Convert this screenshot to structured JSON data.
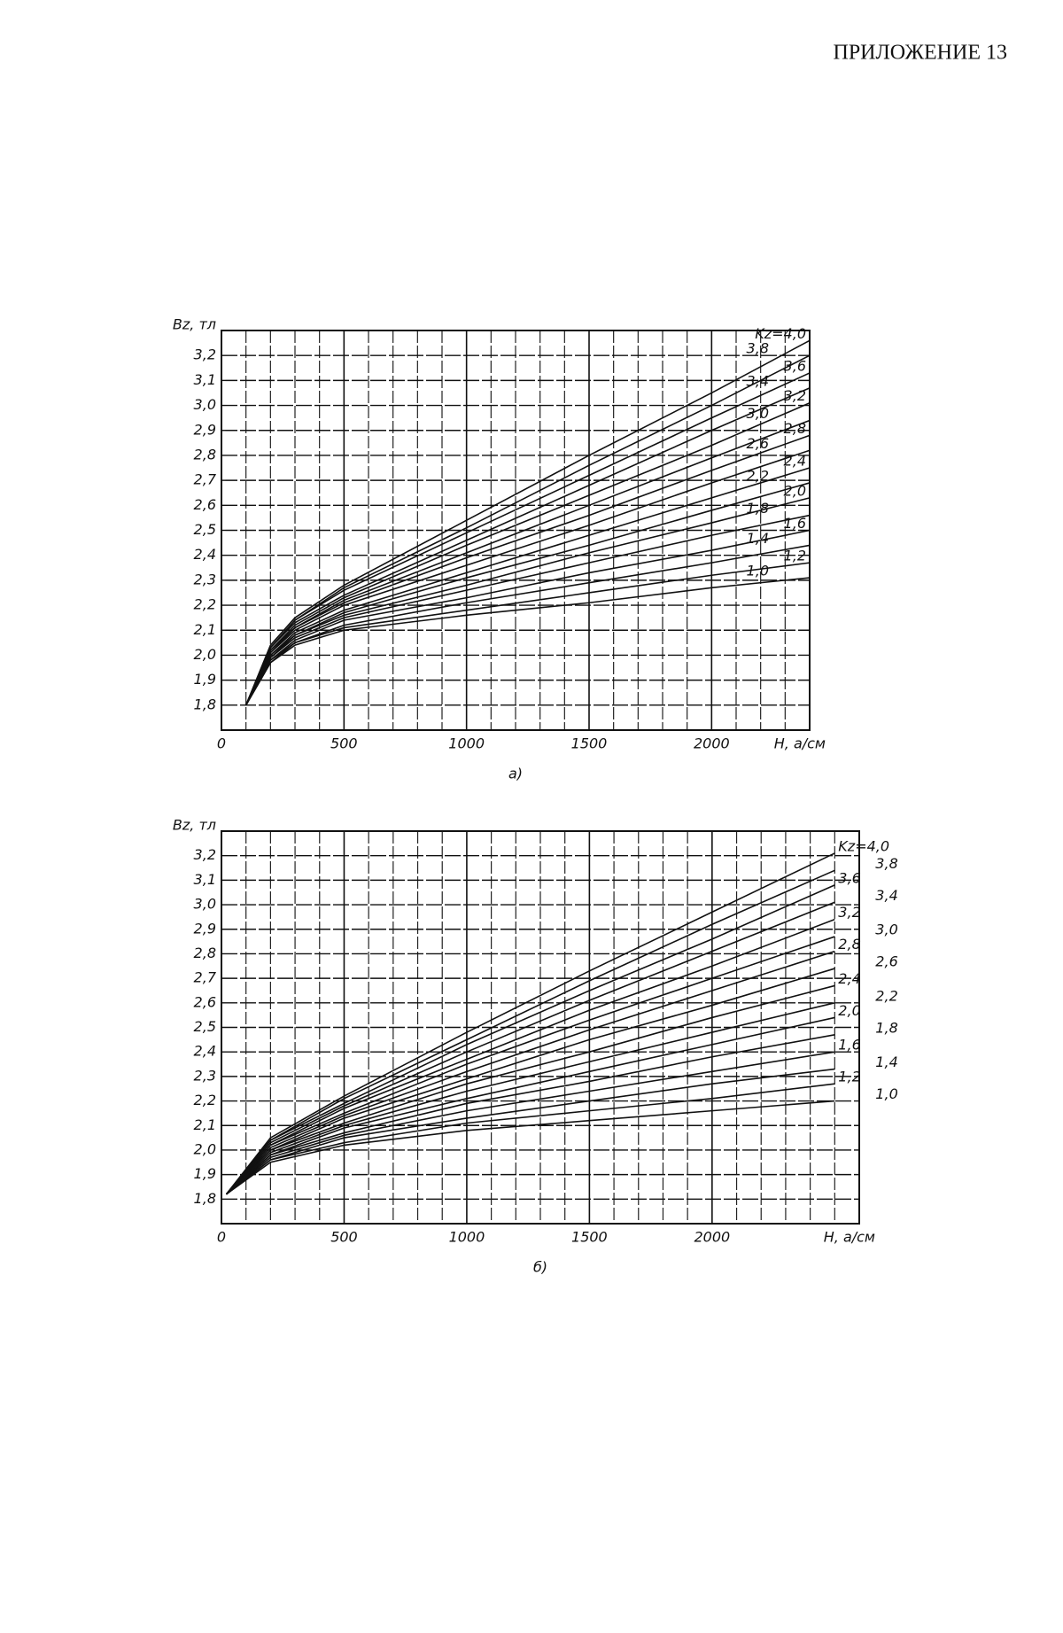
{
  "header": {
    "title": "ПРИЛОЖЕНИЕ 13"
  },
  "chart_data": [
    {
      "type": "line",
      "subtitle": "а)",
      "ylabel": "Bz, тл",
      "xlabel": "H, а/см",
      "color": "#111111",
      "grid": true,
      "xlim": [
        0,
        2400
      ],
      "xticks": [
        0,
        500,
        1000,
        1500,
        2000
      ],
      "ylim": [
        1.7,
        3.3
      ],
      "yticks": [
        {
          "value": 1.8,
          "label": "1,8"
        },
        {
          "value": 1.9,
          "label": "1,9"
        },
        {
          "value": 2.0,
          "label": "2,0"
        },
        {
          "value": 2.1,
          "label": "2,1"
        },
        {
          "value": 2.2,
          "label": "2,2"
        },
        {
          "value": 2.3,
          "label": "2,3"
        },
        {
          "value": 2.4,
          "label": "2,4"
        },
        {
          "value": 2.5,
          "label": "2,5"
        },
        {
          "value": 2.6,
          "label": "2,6"
        },
        {
          "value": 2.7,
          "label": "2,7"
        },
        {
          "value": 2.8,
          "label": "2,8"
        },
        {
          "value": 2.9,
          "label": "2,9"
        },
        {
          "value": 3.0,
          "label": "3,0"
        },
        {
          "value": 3.1,
          "label": "3,1"
        },
        {
          "value": 3.2,
          "label": "3,2"
        }
      ],
      "x": [
        100,
        200,
        300,
        500,
        1000,
        1500,
        2000,
        2400
      ],
      "series": [
        {
          "name": "1,0",
          "values": [
            1.8,
            1.97,
            2.04,
            2.1,
            2.16,
            2.21,
            2.27,
            2.31
          ]
        },
        {
          "name": "1,2",
          "values": [
            1.8,
            1.97,
            2.05,
            2.11,
            2.18,
            2.25,
            2.32,
            2.37
          ]
        },
        {
          "name": "1,4",
          "values": [
            1.8,
            1.98,
            2.05,
            2.12,
            2.21,
            2.29,
            2.37,
            2.44
          ]
        },
        {
          "name": "1,6",
          "values": [
            1.8,
            1.98,
            2.06,
            2.14,
            2.23,
            2.33,
            2.42,
            2.5
          ]
        },
        {
          "name": "1,8",
          "values": [
            1.8,
            1.99,
            2.07,
            2.15,
            2.26,
            2.37,
            2.48,
            2.56
          ]
        },
        {
          "name": "2,0",
          "values": [
            1.8,
            1.99,
            2.08,
            2.16,
            2.28,
            2.41,
            2.53,
            2.63
          ]
        },
        {
          "name": "2,2",
          "values": [
            1.8,
            2.0,
            2.08,
            2.17,
            2.31,
            2.44,
            2.58,
            2.69
          ]
        },
        {
          "name": "2,4",
          "values": [
            1.8,
            2.0,
            2.09,
            2.18,
            2.33,
            2.48,
            2.63,
            2.75
          ]
        },
        {
          "name": "2,6",
          "values": [
            1.8,
            2.01,
            2.1,
            2.2,
            2.36,
            2.52,
            2.69,
            2.82
          ]
        },
        {
          "name": "2,8",
          "values": [
            1.8,
            2.01,
            2.11,
            2.21,
            2.39,
            2.56,
            2.74,
            2.88
          ]
        },
        {
          "name": "3,0",
          "values": [
            1.8,
            2.02,
            2.11,
            2.22,
            2.41,
            2.6,
            2.79,
            2.94
          ]
        },
        {
          "name": "3,2",
          "values": [
            1.8,
            2.02,
            2.12,
            2.23,
            2.44,
            2.64,
            2.84,
            3.01
          ]
        },
        {
          "name": "3,4",
          "values": [
            1.8,
            2.03,
            2.13,
            2.24,
            2.46,
            2.68,
            2.9,
            3.07
          ]
        },
        {
          "name": "3,6",
          "values": [
            1.8,
            2.03,
            2.14,
            2.26,
            2.49,
            2.72,
            2.95,
            3.13
          ]
        },
        {
          "name": "3,8",
          "values": [
            1.8,
            2.03,
            2.14,
            2.27,
            2.51,
            2.76,
            3.0,
            3.2
          ]
        },
        {
          "name": "Kz=4,0",
          "values": [
            1.8,
            2.04,
            2.15,
            2.28,
            2.54,
            2.8,
            3.05,
            3.26
          ]
        }
      ]
    },
    {
      "type": "line",
      "subtitle": "б)",
      "ylabel": "Bz, тл",
      "xlabel": "H, а/см",
      "color": "#111111",
      "grid": true,
      "xlim": [
        0,
        2600
      ],
      "xticks": [
        0,
        500,
        1000,
        1500,
        2000
      ],
      "ylim": [
        1.7,
        3.3
      ],
      "yticks": [
        {
          "value": 1.8,
          "label": "1,8"
        },
        {
          "value": 1.9,
          "label": "1,9"
        },
        {
          "value": 2.0,
          "label": "2,0"
        },
        {
          "value": 2.1,
          "label": "2,1"
        },
        {
          "value": 2.2,
          "label": "2,2"
        },
        {
          "value": 2.3,
          "label": "2,3"
        },
        {
          "value": 2.4,
          "label": "2,4"
        },
        {
          "value": 2.5,
          "label": "2,5"
        },
        {
          "value": 2.6,
          "label": "2,6"
        },
        {
          "value": 2.7,
          "label": "2,7"
        },
        {
          "value": 2.8,
          "label": "2,8"
        },
        {
          "value": 2.9,
          "label": "2,9"
        },
        {
          "value": 3.0,
          "label": "3,0"
        },
        {
          "value": 3.1,
          "label": "3,1"
        },
        {
          "value": 3.2,
          "label": "3,2"
        }
      ],
      "x": [
        20,
        200,
        500,
        1000,
        1500,
        2000,
        2500
      ],
      "series": [
        {
          "name": "1,0",
          "values": [
            1.82,
            1.95,
            2.02,
            2.08,
            2.12,
            2.16,
            2.2
          ]
        },
        {
          "name": "1,2",
          "values": [
            1.82,
            1.96,
            2.03,
            2.11,
            2.16,
            2.21,
            2.27
          ]
        },
        {
          "name": "1,4",
          "values": [
            1.82,
            1.96,
            2.05,
            2.13,
            2.2,
            2.27,
            2.33
          ]
        },
        {
          "name": "1,6",
          "values": [
            1.82,
            1.97,
            2.06,
            2.16,
            2.24,
            2.32,
            2.4
          ]
        },
        {
          "name": "1,8",
          "values": [
            1.82,
            1.98,
            2.07,
            2.19,
            2.28,
            2.38,
            2.47
          ]
        },
        {
          "name": "2,0",
          "values": [
            1.82,
            1.98,
            2.09,
            2.21,
            2.32,
            2.43,
            2.54
          ]
        },
        {
          "name": "2,2",
          "values": [
            1.82,
            1.99,
            2.1,
            2.24,
            2.36,
            2.48,
            2.6
          ]
        },
        {
          "name": "2,4",
          "values": [
            1.82,
            2.0,
            2.11,
            2.27,
            2.4,
            2.54,
            2.67
          ]
        },
        {
          "name": "2,6",
          "values": [
            1.82,
            2.0,
            2.13,
            2.29,
            2.45,
            2.59,
            2.74
          ]
        },
        {
          "name": "2,8",
          "values": [
            1.82,
            2.01,
            2.14,
            2.32,
            2.49,
            2.65,
            2.81
          ]
        },
        {
          "name": "3,0",
          "values": [
            1.82,
            2.02,
            2.15,
            2.35,
            2.53,
            2.7,
            2.87
          ]
        },
        {
          "name": "3,2",
          "values": [
            1.82,
            2.02,
            2.17,
            2.37,
            2.57,
            2.75,
            2.94
          ]
        },
        {
          "name": "3,4",
          "values": [
            1.82,
            2.03,
            2.18,
            2.4,
            2.61,
            2.81,
            3.01
          ]
        },
        {
          "name": "3,6",
          "values": [
            1.82,
            2.04,
            2.19,
            2.43,
            2.65,
            2.86,
            3.08
          ]
        },
        {
          "name": "3,8",
          "values": [
            1.82,
            2.04,
            2.21,
            2.45,
            2.69,
            2.92,
            3.14
          ]
        },
        {
          "name": "Kz=4,0",
          "values": [
            1.82,
            2.05,
            2.22,
            2.48,
            2.73,
            2.97,
            3.21
          ]
        }
      ]
    }
  ]
}
